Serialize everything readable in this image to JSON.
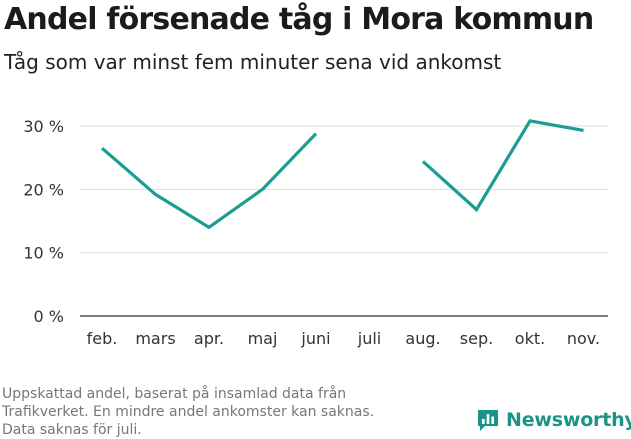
{
  "title": "Andel försenade tåg i Mora kommun",
  "subtitle": "Tåg som var minst fem minuter sena vid ankomst",
  "footnote": [
    "Uppskattad andel, baserat på insamlad data från",
    "Trafikverket. En mindre andel ankomster kan saknas.",
    "Data saknas för juli."
  ],
  "brand": {
    "name": "Newsworthy",
    "icon": "newsworthy-chart-icon",
    "color": "#1a9488"
  },
  "colors": {
    "line": "#1a9e92",
    "grid": "#dddddd",
    "axis": "#333333"
  },
  "chart_data": {
    "type": "line",
    "categories": [
      "feb.",
      "mars",
      "apr.",
      "maj",
      "juni",
      "juli",
      "aug.",
      "sep.",
      "okt.",
      "nov."
    ],
    "series": [
      {
        "values": [
          26.5,
          19.2,
          14.0,
          20.0,
          28.8,
          null,
          24.4,
          16.8,
          30.8,
          29.3
        ]
      }
    ],
    "yticks": [
      "0 %",
      "10 %",
      "20 %",
      "30 %"
    ],
    "ylim": [
      0,
      30
    ],
    "grid": "horizontal",
    "legend": "none"
  }
}
